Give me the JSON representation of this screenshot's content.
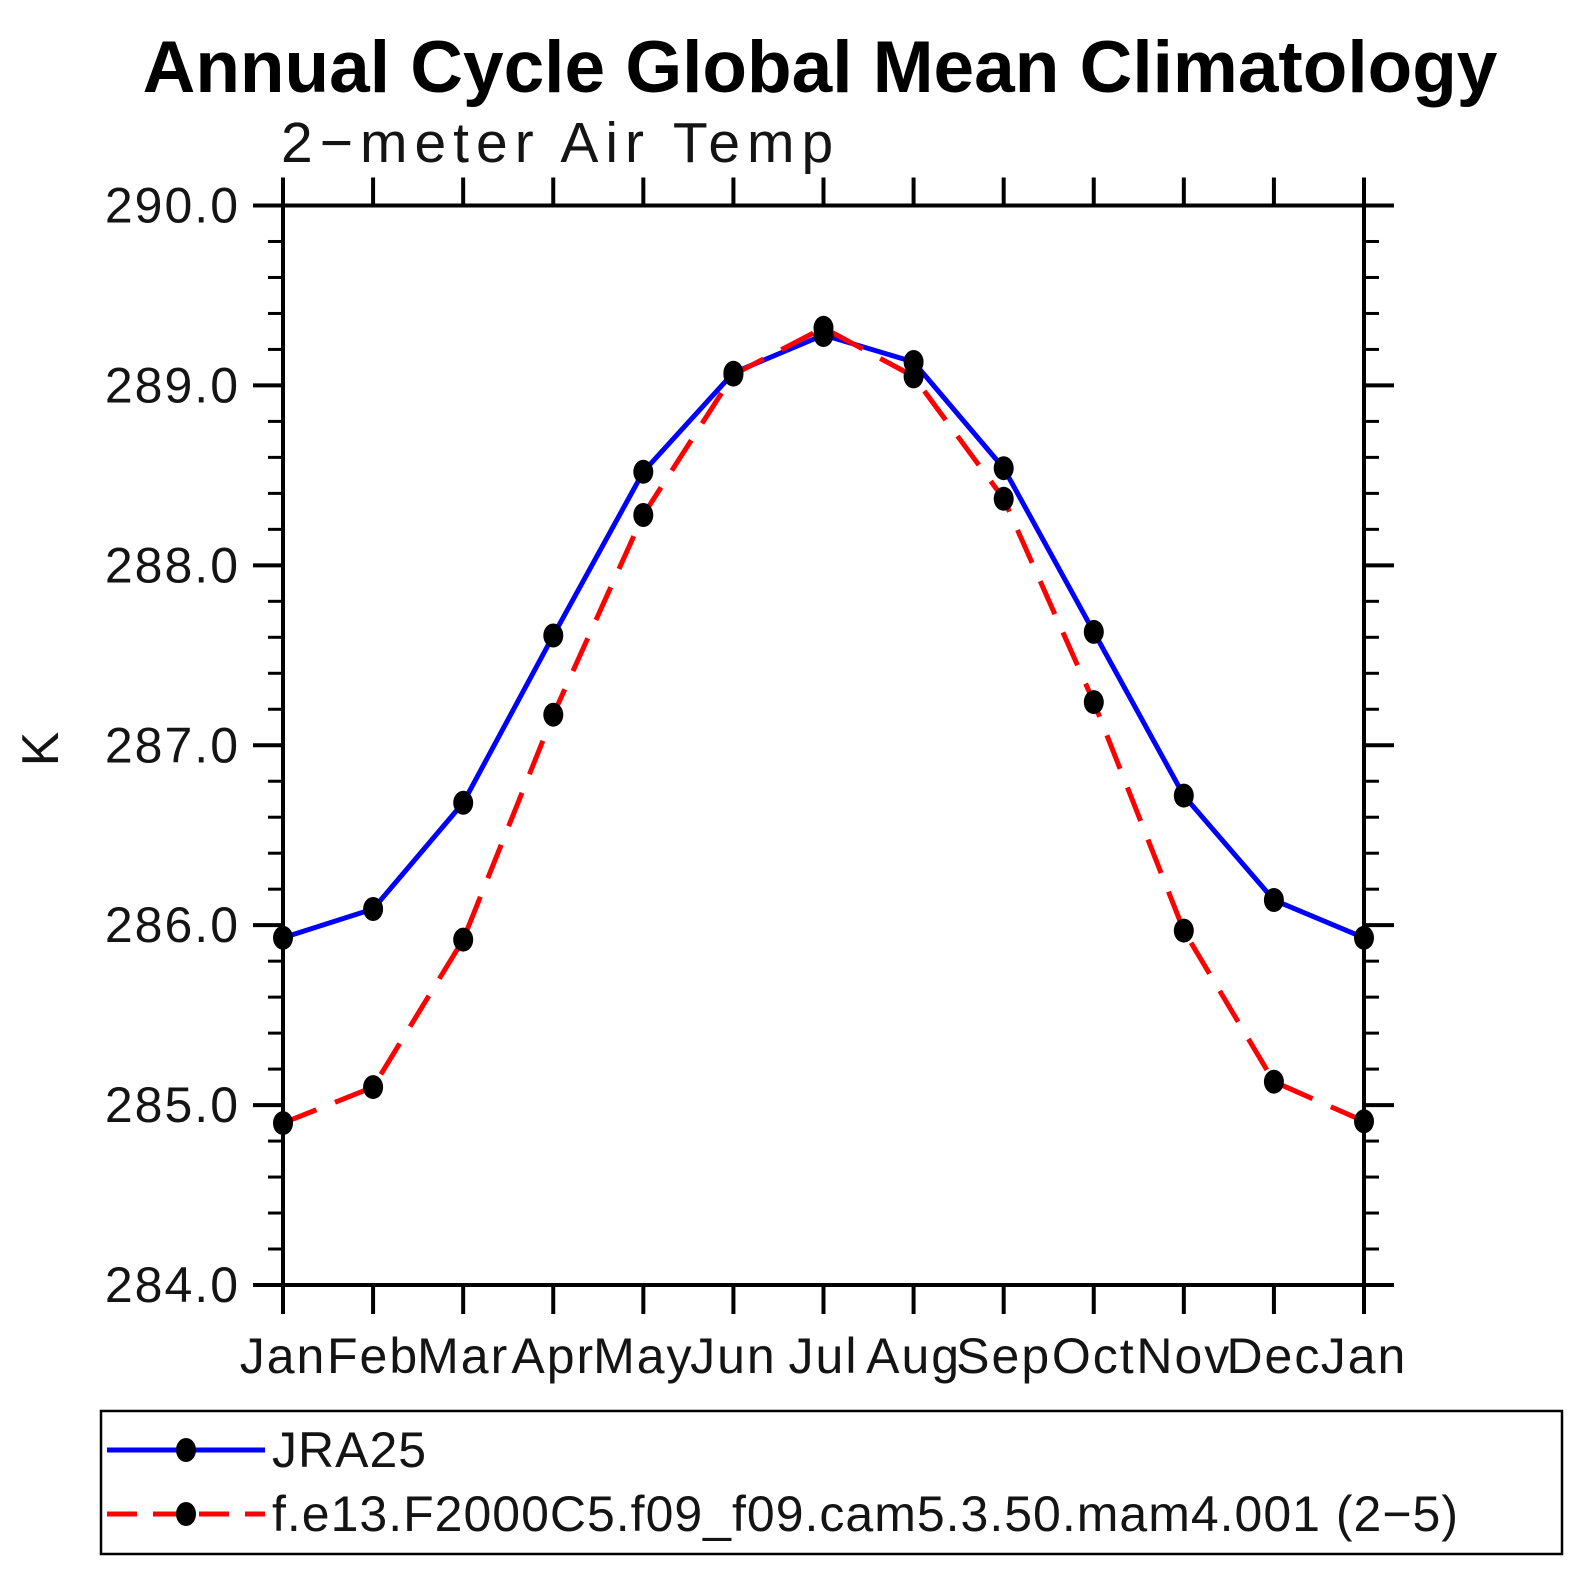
{
  "chart_data": {
    "type": "line",
    "title": "Annual Cycle Global Mean Climatology",
    "subtitle": "2−meter Air Temp",
    "ylabel": "K",
    "categories": [
      "Jan",
      "Feb",
      "Mar",
      "Apr",
      "May",
      "Jun",
      "Jul",
      "Aug",
      "Sep",
      "Oct",
      "Nov",
      "Dec",
      "Jan"
    ],
    "ylim": [
      284.0,
      290.0
    ],
    "ytick_interval": 1.0,
    "yminor_interval": 0.2,
    "ytick_labels": [
      "284.0",
      "285.0",
      "286.0",
      "287.0",
      "288.0",
      "289.0",
      "290.0"
    ],
    "grid": false,
    "legend_position": "bottom",
    "marker": {
      "shape": "filled-circle",
      "color": "#000000"
    },
    "axis_color": "#000000",
    "series": [
      {
        "name": "JRA25",
        "color": "#0000ff",
        "line_style": "solid",
        "values": [
          285.93,
          286.09,
          286.68,
          287.61,
          288.52,
          289.07,
          289.28,
          289.13,
          288.54,
          287.63,
          286.72,
          286.14,
          285.93
        ]
      },
      {
        "name": "f.e13.F2000C5.f09_f09.cam5.3.50.mam4.001 (2−5)",
        "color": "#ff0000",
        "line_style": "dashed",
        "values": [
          284.9,
          285.1,
          285.92,
          287.17,
          288.28,
          289.06,
          289.32,
          289.05,
          288.37,
          287.24,
          285.97,
          285.13,
          284.91
        ]
      }
    ]
  }
}
